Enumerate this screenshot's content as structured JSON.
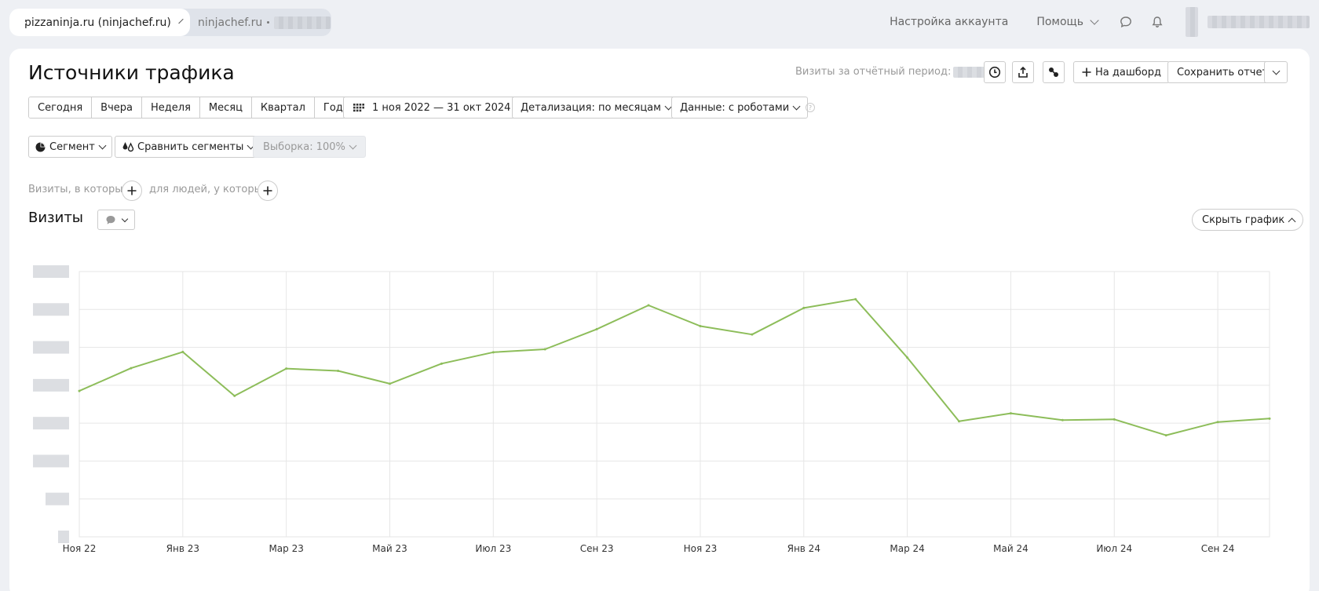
{
  "topbar": {
    "active_site": "pizzaninja.ru (ninjachef.ru)",
    "second_site": "ninjachef.ru",
    "account_settings": "Настройка аккаунта",
    "help": "Помощь"
  },
  "report": {
    "title": "Источники трафика",
    "visits_period_label": "Визиты за отчётный период:",
    "to_dashboard": "На дашборд",
    "save_report": "Сохранить отчет"
  },
  "period_buttons": [
    "Сегодня",
    "Вчера",
    "Неделя",
    "Месяц",
    "Квартал",
    "Год"
  ],
  "date_range": "1 ноя 2022 — 31 окт 2024",
  "detail": "Детализация: по месяцам",
  "data_mode": "Данные: с роботами",
  "segment": "Сегмент",
  "compare_segments": "Сравнить сегменты",
  "sample": "Выборка: 100%",
  "filters": {
    "visits_where": "Визиты, в которых",
    "people_where": "для людей, у которых"
  },
  "chart_section": {
    "title": "Визиты",
    "hide_chart": "Скрыть график"
  },
  "colors": {
    "line": "#8dbd5a",
    "grid": "#e6e6e6",
    "favicon": "#d9342b"
  },
  "chart_data": {
    "type": "line",
    "x_tick_labels": [
      "Ноя 22",
      "Янв 23",
      "Мар 23",
      "Май 23",
      "Июл 23",
      "Сен 23",
      "Ноя 23",
      "Янв 24",
      "Мар 24",
      "Май 24",
      "Июл 24",
      "Сен 24"
    ],
    "x": [
      "Ноя 22",
      "Дек 22",
      "Янв 23",
      "Фев 23",
      "Мар 23",
      "Апр 23",
      "Май 23",
      "Июн 23",
      "Июл 23",
      "Авг 23",
      "Сен 23",
      "Окт 23",
      "Ноя 23",
      "Дек 23",
      "Янв 24",
      "Фев 24",
      "Мар 24",
      "Апр 24",
      "Май 24",
      "Июн 24",
      "Июл 24",
      "Авг 24",
      "Сен 24",
      "Окт 24"
    ],
    "series": [
      {
        "values": [
          38.5,
          44.5,
          48.8,
          37.2,
          44.4,
          43.8,
          40.4,
          45.7,
          48.7,
          49.5,
          54.8,
          61.1,
          55.6,
          53.4,
          60.4,
          62.7,
          47.3,
          30.5,
          32.6,
          30.8,
          31.0,
          26.8,
          30.3,
          31.2
        ]
      }
    ],
    "ylim": [
      0,
      70
    ],
    "y_gridlines": 7,
    "y_tick_labels_hidden": true,
    "grid": true,
    "legend": "none"
  }
}
